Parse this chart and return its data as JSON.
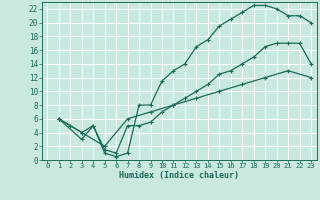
{
  "xlabel": "Humidex (Indice chaleur)",
  "bg_color": "#c8e8e0",
  "line_color": "#1a6b5a",
  "grid_color": "#ffffff",
  "xlim": [
    -0.5,
    23.5
  ],
  "ylim": [
    0,
    23
  ],
  "xticks": [
    0,
    1,
    2,
    3,
    4,
    5,
    6,
    7,
    8,
    9,
    10,
    11,
    12,
    13,
    14,
    15,
    16,
    17,
    18,
    19,
    20,
    21,
    22,
    23
  ],
  "yticks": [
    0,
    2,
    4,
    6,
    8,
    10,
    12,
    14,
    16,
    18,
    20,
    22
  ],
  "line1_x": [
    1,
    2,
    3,
    4,
    5,
    6,
    7,
    8,
    9,
    10,
    11,
    12,
    13,
    14,
    15,
    16,
    17,
    18,
    19,
    20,
    21,
    22,
    23
  ],
  "line1_y": [
    6,
    5,
    4,
    5,
    1,
    0.5,
    1,
    8,
    8,
    11.5,
    13,
    14,
    16.5,
    17.5,
    19.5,
    20.5,
    21.5,
    22.5,
    22.5,
    22,
    21,
    21,
    20
  ],
  "line2_x": [
    1,
    3,
    4,
    5,
    6,
    7,
    8,
    9,
    10,
    11,
    12,
    13,
    14,
    15,
    16,
    17,
    18,
    19,
    20,
    21,
    22,
    23
  ],
  "line2_y": [
    6,
    3,
    5,
    1.5,
    1,
    5,
    5,
    5.5,
    7,
    8,
    9,
    10,
    11,
    12.5,
    13,
    14,
    15,
    16.5,
    17,
    17,
    17,
    14
  ],
  "line3_x": [
    1,
    3,
    5,
    7,
    9,
    11,
    13,
    15,
    17,
    19,
    21,
    23
  ],
  "line3_y": [
    6,
    4,
    2,
    6,
    7,
    8,
    9,
    10,
    11,
    12,
    13,
    12
  ]
}
